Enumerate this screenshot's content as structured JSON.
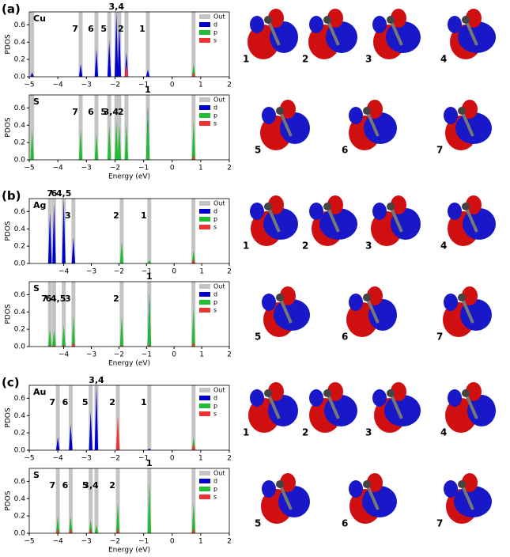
{
  "panels": [
    {
      "label": "(a)",
      "orbital_labels": [
        "1",
        "2",
        "3",
        "4",
        "5",
        "6",
        "7"
      ]
    },
    {
      "label": "(b)",
      "orbital_labels": [
        "1",
        "2",
        "3",
        "4",
        "5",
        "6",
        "7"
      ]
    },
    {
      "label": "(c)",
      "orbital_labels": [
        "1",
        "2",
        "3",
        "4",
        "5",
        "6",
        "7"
      ]
    }
  ],
  "chart_data": [
    {
      "type": "bar",
      "label": "Cu",
      "ylabel": "PDOS",
      "legend": "upper right",
      "x": [
        -4.9,
        -3.2,
        -2.65,
        -2.2,
        -1.95,
        -1.85,
        -1.6,
        -0.85,
        0.75
      ],
      "peak_labels": [
        null,
        "7",
        "6",
        "5",
        "3,4",
        null,
        "2",
        "1",
        null
      ],
      "series": [
        {
          "name": "Out",
          "color": "#c4c4c4",
          "values": [
            0.75,
            0.75,
            0.75,
            0.75,
            0.75,
            0.75,
            0.75,
            0.75,
            0.75
          ]
        },
        {
          "name": "d",
          "color": "#0000cc",
          "values": [
            0.05,
            0.15,
            0.32,
            0.42,
            0.75,
            0.62,
            0.28,
            0.08,
            0
          ]
        },
        {
          "name": "p",
          "color": "#22bb33",
          "values": [
            0,
            0,
            0,
            0,
            0,
            0,
            0.02,
            0,
            0.15
          ]
        },
        {
          "name": "s",
          "color": "#ee3333",
          "values": [
            0,
            0,
            0,
            0,
            0,
            0,
            0.15,
            0,
            0.05
          ]
        }
      ],
      "xlim": [
        -5,
        2
      ],
      "xticks": [
        {
          "value": -5,
          "label": "−5"
        },
        {
          "value": -4,
          "label": "−4"
        },
        {
          "value": -3,
          "label": "−3"
        },
        {
          "value": -2,
          "label": "−2"
        },
        {
          "value": -1,
          "label": "−1"
        },
        0,
        1,
        2
      ],
      "ylim": [
        0,
        0.75
      ],
      "yticks": [
        {
          "value": 0,
          "label": "0.0"
        },
        0.2,
        0.4,
        0.6
      ]
    },
    {
      "type": "bar",
      "label": "S",
      "ylabel": "PDOS",
      "xlabel": "Energy (eV)",
      "legend": "upper right",
      "x": [
        -4.9,
        -3.2,
        -2.65,
        -2.2,
        -1.95,
        -1.85,
        -1.6,
        -0.85,
        0.75
      ],
      "peak_labels": [
        null,
        "7",
        "6",
        "5",
        "3,4",
        null,
        "2",
        "1",
        null
      ],
      "series": [
        {
          "name": "Out",
          "color": "#c4c4c4",
          "values": [
            0.75,
            0.75,
            0.75,
            0.75,
            0.75,
            0.75,
            0.75,
            0.75,
            0.75
          ]
        },
        {
          "name": "d",
          "color": "#0000cc",
          "values": [
            0,
            0,
            0,
            0,
            0,
            0,
            0,
            0.62,
            0
          ]
        },
        {
          "name": "p",
          "color": "#22bb33",
          "values": [
            0.35,
            0.35,
            0.3,
            0.4,
            0.45,
            0.42,
            0.42,
            0.6,
            0.45
          ]
        },
        {
          "name": "s",
          "color": "#ee3333",
          "values": [
            0,
            0,
            0,
            0,
            0,
            0,
            0,
            0,
            0.05
          ]
        }
      ],
      "xlim": [
        -5,
        2
      ],
      "xticks": [
        {
          "value": -5,
          "label": "−5"
        },
        {
          "value": -4,
          "label": "−4"
        },
        {
          "value": -3,
          "label": "−3"
        },
        {
          "value": -2,
          "label": "−2"
        },
        {
          "value": -1,
          "label": "−1"
        },
        0,
        1,
        2
      ],
      "ylim": [
        0,
        0.75
      ],
      "yticks": [
        {
          "value": 0,
          "label": "0.0"
        },
        0.2,
        0.4,
        0.6
      ]
    },
    {
      "type": "bar",
      "label": "Ag",
      "ylabel": "PDOS",
      "legend": "upper right",
      "x": [
        -4.5,
        -4.35,
        -4.0,
        -3.65,
        -1.9,
        -0.9,
        0.7
      ],
      "peak_labels": [
        "7",
        "6",
        "4,5",
        "3",
        "2",
        "1",
        null
      ],
      "series": [
        {
          "name": "Out",
          "color": "#c4c4c4",
          "values": [
            0.75,
            0.75,
            0.75,
            0.75,
            0.75,
            0.75,
            0.75
          ]
        },
        {
          "name": "d",
          "color": "#0000cc",
          "values": [
            0.6,
            0.7,
            0.75,
            0.3,
            0.02,
            0.02,
            0
          ]
        },
        {
          "name": "p",
          "color": "#22bb33",
          "values": [
            0,
            0,
            0,
            0,
            0.25,
            0.04,
            0.15
          ]
        },
        {
          "name": "s",
          "color": "#ee3333",
          "values": [
            0,
            0,
            0,
            0,
            0,
            0,
            0.05
          ]
        }
      ],
      "xlim": [
        -5.25,
        2
      ],
      "xticks": [
        {
          "value": -4,
          "label": "−4"
        },
        {
          "value": -3,
          "label": "−3"
        },
        {
          "value": -2,
          "label": "−2"
        },
        {
          "value": -1,
          "label": "−1"
        },
        0,
        1,
        2
      ],
      "ylim": [
        0,
        0.75
      ],
      "yticks": [
        {
          "value": 0,
          "label": "0.0"
        },
        0.2,
        0.4,
        0.6
      ]
    },
    {
      "type": "bar",
      "label": "S",
      "ylabel": "PDOS",
      "xlabel": "Energy (eV)",
      "legend": "upper right",
      "x": [
        -4.5,
        -4.35,
        -4.0,
        -3.65,
        -1.9,
        -0.9,
        0.7
      ],
      "peak_labels": [
        "7",
        "6",
        "4,5",
        "3",
        "2",
        "1",
        null
      ],
      "series": [
        {
          "name": "Out",
          "color": "#c4c4c4",
          "values": [
            0.75,
            0.75,
            0.75,
            0.75,
            0.75,
            0.75,
            0.75
          ]
        },
        {
          "name": "d",
          "color": "#0000cc",
          "values": [
            0.05,
            0.1,
            0.15,
            0.05,
            0,
            0.62,
            0
          ]
        },
        {
          "name": "p",
          "color": "#22bb33",
          "values": [
            0.2,
            0.2,
            0.25,
            0.35,
            0.35,
            0.6,
            0.45
          ]
        },
        {
          "name": "s",
          "color": "#ee3333",
          "values": [
            0.02,
            0.02,
            0.02,
            0.05,
            0.02,
            0.02,
            0.05
          ]
        }
      ],
      "xlim": [
        -5.25,
        2
      ],
      "xticks": [
        {
          "value": -4,
          "label": "−4"
        },
        {
          "value": -3,
          "label": "−3"
        },
        {
          "value": -2,
          "label": "−2"
        },
        {
          "value": -1,
          "label": "−1"
        },
        0,
        1,
        2
      ],
      "ylim": [
        0,
        0.75
      ],
      "yticks": [
        {
          "value": 0,
          "label": "0.0"
        },
        0.2,
        0.4,
        0.6
      ]
    },
    {
      "type": "bar",
      "label": "Au",
      "ylabel": "PDOS",
      "legend": "upper right",
      "x": [
        -4.0,
        -3.55,
        -2.85,
        -2.65,
        -1.9,
        -0.8,
        0.75
      ],
      "peak_labels": [
        "7",
        "6",
        "5",
        "3,4",
        "2",
        "1",
        null
      ],
      "series": [
        {
          "name": "Out",
          "color": "#c4c4c4",
          "values": [
            0.75,
            0.75,
            0.75,
            0.75,
            0.75,
            0.75,
            0.75
          ]
        },
        {
          "name": "d",
          "color": "#0000cc",
          "values": [
            0.15,
            0.3,
            0.45,
            0.75,
            0.2,
            0.02,
            0.02
          ]
        },
        {
          "name": "p",
          "color": "#22bb33",
          "values": [
            0,
            0,
            0,
            0,
            0.05,
            0,
            0.15
          ]
        },
        {
          "name": "s",
          "color": "#ee3333",
          "values": [
            0,
            0,
            0,
            0,
            0.4,
            0,
            0.08
          ]
        }
      ],
      "xlim": [
        -5,
        2
      ],
      "xticks": [
        {
          "value": -5,
          "label": "−5"
        },
        {
          "value": -4,
          "label": "−4"
        },
        {
          "value": -3,
          "label": "−3"
        },
        {
          "value": -2,
          "label": "−2"
        },
        {
          "value": -1,
          "label": "−1"
        },
        0,
        1,
        2
      ],
      "ylim": [
        0,
        0.75
      ],
      "yticks": [
        {
          "value": 0,
          "label": "0.0"
        },
        0.2,
        0.4,
        0.6
      ]
    },
    {
      "type": "bar",
      "label": "S",
      "ylabel": "PDOS",
      "xlabel": "Energy (eV)",
      "legend": "upper right",
      "x": [
        -4.0,
        -3.55,
        -2.85,
        -2.65,
        -1.9,
        -0.8,
        0.75
      ],
      "peak_labels": [
        "7",
        "6",
        "5",
        "3,4",
        "2",
        "1",
        null
      ],
      "series": [
        {
          "name": "Out",
          "color": "#c4c4c4",
          "values": [
            0.75,
            0.75,
            0.75,
            0.75,
            0.75,
            0.75,
            0.75
          ]
        },
        {
          "name": "d",
          "color": "#0000cc",
          "values": [
            0,
            0,
            0,
            0,
            0,
            0,
            0
          ]
        },
        {
          "name": "p",
          "color": "#22bb33",
          "values": [
            0.2,
            0.2,
            0.15,
            0.1,
            0.35,
            0.6,
            0.35
          ]
        },
        {
          "name": "s",
          "color": "#ee3333",
          "values": [
            0.05,
            0.05,
            0.05,
            0,
            0.05,
            0,
            0.05
          ]
        }
      ],
      "xlim": [
        -5,
        2
      ],
      "xticks": [
        {
          "value": -5,
          "label": "−5"
        },
        {
          "value": -4,
          "label": "−4"
        },
        {
          "value": -3,
          "label": "−3"
        },
        {
          "value": -2,
          "label": "−2"
        },
        {
          "value": -1,
          "label": "−1"
        },
        0,
        1,
        2
      ],
      "ylim": [
        0,
        0.75
      ],
      "yticks": [
        {
          "value": 0,
          "label": "0.0"
        },
        0.2,
        0.4,
        0.6
      ]
    }
  ]
}
